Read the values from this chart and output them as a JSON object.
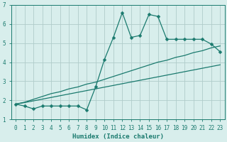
{
  "xlabel": "Humidex (Indice chaleur)",
  "x_data": [
    0,
    1,
    2,
    3,
    4,
    5,
    6,
    7,
    8,
    9,
    10,
    11,
    12,
    13,
    14,
    15,
    16,
    17,
    18,
    19,
    20,
    21,
    22,
    23
  ],
  "y_main": [
    1.8,
    1.7,
    1.55,
    1.7,
    1.7,
    1.7,
    1.7,
    1.7,
    1.5,
    2.7,
    4.15,
    5.3,
    6.6,
    5.3,
    5.4,
    6.5,
    6.4,
    5.2,
    5.2,
    5.2,
    5.2,
    5.2,
    4.95,
    4.55
  ],
  "y_upper": [
    1.8,
    1.9,
    2.05,
    2.2,
    2.35,
    2.45,
    2.6,
    2.7,
    2.85,
    2.95,
    3.1,
    3.25,
    3.4,
    3.55,
    3.7,
    3.85,
    4.0,
    4.1,
    4.25,
    4.35,
    4.5,
    4.6,
    4.75,
    4.85
  ],
  "y_lower": [
    1.8,
    1.88,
    1.97,
    2.06,
    2.15,
    2.24,
    2.33,
    2.42,
    2.51,
    2.6,
    2.69,
    2.78,
    2.87,
    2.96,
    3.05,
    3.14,
    3.23,
    3.32,
    3.41,
    3.5,
    3.59,
    3.68,
    3.77,
    3.86
  ],
  "line_color": "#1a7a6e",
  "bg_color": "#d8eeec",
  "grid_color": "#b0ccca",
  "ylim_min": 1.0,
  "ylim_max": 7.0,
  "xlim_min": -0.5,
  "xlim_max": 23.5,
  "yticks": [
    1,
    2,
    3,
    4,
    5,
    6,
    7
  ],
  "xtick_labels": [
    "0",
    "1",
    "2",
    "3",
    "4",
    "5",
    "6",
    "7",
    "8",
    "9",
    "10",
    "11",
    "12",
    "13",
    "14",
    "15",
    "16",
    "17",
    "18",
    "19",
    "20",
    "21",
    "22",
    "23"
  ],
  "markersize": 2.5,
  "linewidth": 0.9,
  "tick_fontsize": 5.5,
  "xlabel_fontsize": 6.5
}
